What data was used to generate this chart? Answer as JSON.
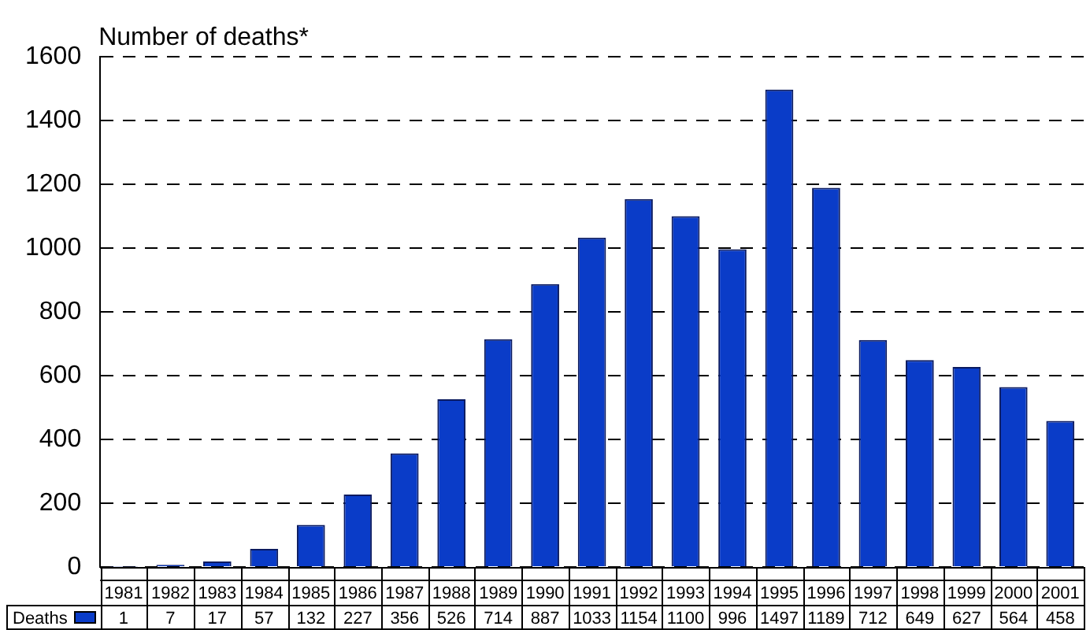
{
  "chart_data": {
    "type": "bar",
    "ylabel": "Number of deaths*",
    "categories": [
      "1981",
      "1982",
      "1983",
      "1984",
      "1985",
      "1986",
      "1987",
      "1988",
      "1989",
      "1990",
      "1991",
      "1992",
      "1993",
      "1994",
      "1995",
      "1996",
      "1997",
      "1998",
      "1999",
      "2000",
      "2001"
    ],
    "series": [
      {
        "name": "Deaths",
        "color": "#0a3cc8",
        "values": [
          1,
          7,
          17,
          57,
          132,
          227,
          356,
          526,
          714,
          887,
          1033,
          1154,
          1100,
          996,
          1497,
          1189,
          712,
          649,
          627,
          564,
          458
        ]
      }
    ],
    "ylim": [
      0,
      1600
    ],
    "yticks": [
      0,
      200,
      400,
      600,
      800,
      1000,
      1200,
      1400,
      1600
    ],
    "grid": "y",
    "legend": "bottom",
    "data_labels": true
  }
}
